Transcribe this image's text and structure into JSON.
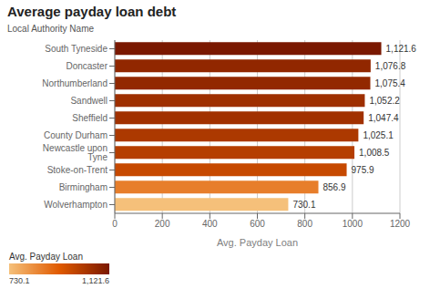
{
  "chart_data": {
    "type": "bar",
    "orientation": "horizontal",
    "title": "Average payday loan debt",
    "categories": [
      "South Tyneside",
      "Doncaster",
      "Northumberland",
      "Sandwell",
      "Sheffield",
      "County Durham",
      "Newcastle upon Tyne",
      "Stoke-on-Trent",
      "Birmingham",
      "Wolverhampton"
    ],
    "values": [
      1121.6,
      1076.8,
      1075.4,
      1052.2,
      1047.4,
      1025.1,
      1008.5,
      975.9,
      856.9,
      730.1
    ],
    "value_labels": [
      "1,121.6",
      "1,076.8",
      "1,075.4",
      "1,052.2",
      "1,047.4",
      "1,025.1",
      "1,008.5",
      "975.9",
      "856.9",
      "730.1"
    ],
    "data_labels": true,
    "xlabel": "Avg. Payday Loan",
    "ylabel": "Local Authority Name",
    "xlim": [
      0,
      1200
    ],
    "xticks": [
      0,
      200,
      400,
      600,
      800,
      1000,
      1200
    ],
    "grid": true,
    "colorbar": {
      "label": "Avg. Payday Loan",
      "colors": [
        "#f5c07a",
        "#e05a00",
        "#7a1800"
      ],
      "range": [
        730.1,
        1121.6
      ],
      "ticks": [
        {
          "value": 730.1,
          "label": "730.1"
        },
        {
          "value": 1121.6,
          "label": "1,121.6"
        }
      ]
    }
  }
}
